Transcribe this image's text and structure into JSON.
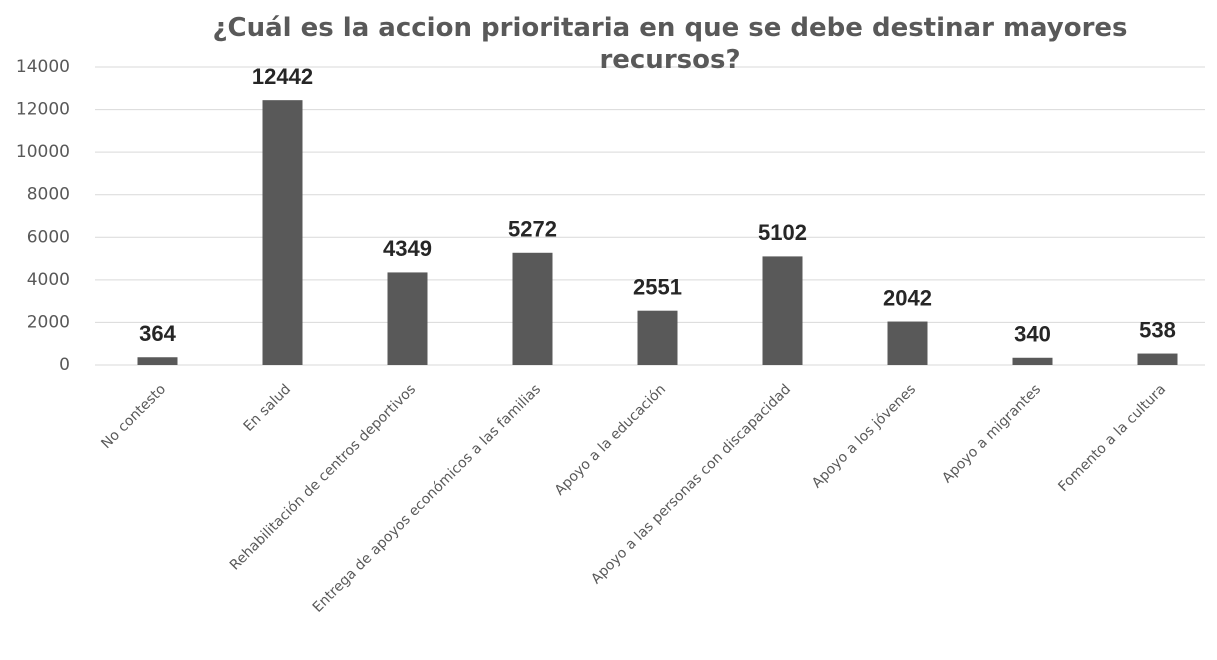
{
  "chart_data": {
    "type": "bar",
    "title": "¿Cuál es la accion prioritaria en que se debe destinar mayores recursos?",
    "categories": [
      "No contesto",
      "En salud",
      "Rehabilitación de centros deportivos",
      "Entrega de apoyos económicos a las familias",
      "Apoyo a la educación",
      "Apoyo a las personas con discapacidad",
      "Apoyo a los jóvenes",
      "Apoyo a migrantes",
      "Fomento a la cultura"
    ],
    "values": [
      364,
      12442,
      4349,
      5272,
      2551,
      5102,
      2042,
      340,
      538
    ],
    "color": "#595959",
    "ylim": [
      0,
      14000
    ],
    "yticks": [
      0,
      2000,
      4000,
      6000,
      8000,
      10000,
      12000,
      14000
    ],
    "grid": true
  }
}
